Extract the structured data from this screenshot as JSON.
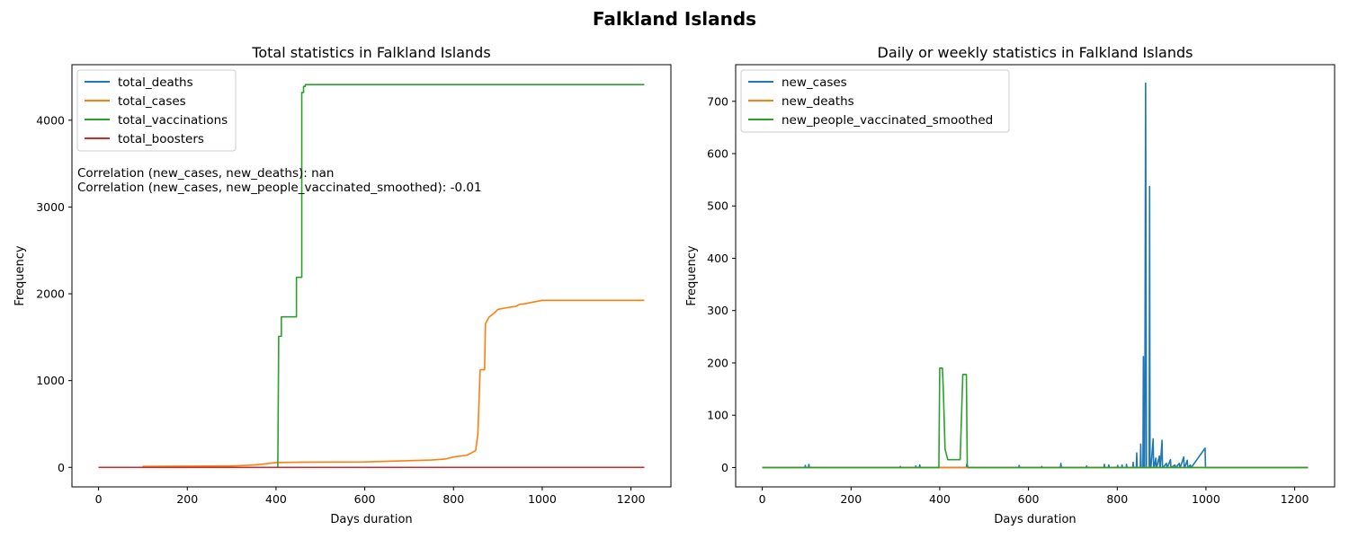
{
  "figure": {
    "suptitle": "Falkland Islands"
  },
  "chart_data": [
    {
      "type": "line",
      "title": "Total statistics in Falkland Islands",
      "xlabel": "Days duration",
      "ylabel": "Frequency",
      "xlim": [
        -60,
        1290
      ],
      "ylim": [
        -225,
        4640
      ],
      "xticks": [
        0,
        200,
        400,
        600,
        800,
        1000,
        1200
      ],
      "yticks": [
        0,
        1000,
        2000,
        3000,
        4000
      ],
      "legend_position": "upper-left",
      "annotations": [
        "Correlation (new_cases, new_deaths): nan",
        "Correlation (new_cases, new_people_vaccinated_smoothed): -0.01"
      ],
      "series": [
        {
          "name": "total_deaths",
          "color": "#1f77b4",
          "x": [
            0,
            1230
          ],
          "y": [
            0,
            0
          ]
        },
        {
          "name": "total_cases",
          "color": "#ff7f0e",
          "x": [
            0,
            100,
            100,
            300,
            350,
            360,
            400,
            460,
            600,
            700,
            750,
            780,
            800,
            830,
            840,
            850,
            855,
            860,
            862,
            870,
            872,
            880,
            890,
            900,
            920,
            940,
            950,
            960,
            1000,
            1230
          ],
          "y": [
            0,
            0,
            11,
            16,
            27,
            32,
            55,
            60,
            63,
            77,
            85,
            95,
            120,
            140,
            165,
            195,
            390,
            1120,
            1125,
            1125,
            1655,
            1730,
            1770,
            1820,
            1840,
            1855,
            1880,
            1885,
            1925,
            1925
          ]
        },
        {
          "name": "total_vaccinations",
          "color": "#2ca02c",
          "x": [
            0,
            404,
            406,
            412,
            412,
            446,
            446,
            458,
            458,
            462,
            462,
            466,
            466,
            1230
          ],
          "y": [
            0,
            0,
            1510,
            1510,
            1735,
            1735,
            2190,
            2190,
            4320,
            4320,
            4390,
            4390,
            4410,
            4410
          ]
        },
        {
          "name": "total_boosters",
          "color": "#d62728",
          "x": [
            0,
            1230
          ],
          "y": [
            0,
            0
          ]
        }
      ]
    },
    {
      "type": "line",
      "title": "Daily or weekly statistics in Falkland Islands",
      "xlabel": "Days duration",
      "ylabel": "Frequency",
      "xlim": [
        -60,
        1290
      ],
      "ylim": [
        -37,
        770
      ],
      "xticks": [
        0,
        200,
        400,
        600,
        800,
        1000,
        1200
      ],
      "yticks": [
        0,
        100,
        200,
        300,
        400,
        500,
        600,
        700
      ],
      "legend_position": "upper-left",
      "series": [
        {
          "name": "new_cases",
          "color": "#1f77b4",
          "x": [
            0,
            96,
            97,
            98,
            104,
            105,
            106,
            310,
            311,
            312,
            345,
            346,
            347,
            354,
            355,
            356,
            460,
            461,
            462,
            578,
            579,
            580,
            629,
            630,
            631,
            672,
            673,
            674,
            730,
            731,
            732,
            770,
            771,
            772,
            780,
            781,
            782,
            800,
            801,
            802,
            810,
            811,
            812,
            820,
            821,
            822,
            835,
            836,
            837,
            843,
            844,
            845,
            852,
            853,
            854,
            858,
            859,
            860,
            862,
            864,
            866,
            872,
            873,
            874,
            876,
            881,
            882,
            883,
            887,
            888,
            889,
            895,
            896,
            897,
            901,
            902,
            903,
            911,
            912,
            913,
            920,
            921,
            922,
            930,
            931,
            932,
            940,
            941,
            942,
            950,
            951,
            952,
            958,
            959,
            960,
            965,
            966,
            967,
            998,
            999,
            1000,
            1230
          ],
          "y": [
            0,
            0,
            4,
            0,
            0,
            6,
            0,
            0,
            2,
            0,
            0,
            3,
            0,
            0,
            5,
            0,
            0,
            7,
            0,
            0,
            4,
            0,
            0,
            2,
            0,
            0,
            8,
            0,
            0,
            3,
            0,
            0,
            6,
            0,
            0,
            5,
            0,
            0,
            4,
            0,
            0,
            5,
            0,
            0,
            6,
            0,
            0,
            10,
            0,
            0,
            28,
            0,
            0,
            45,
            0,
            0,
            212,
            0,
            0,
            735,
            0,
            0,
            537,
            0,
            0,
            55,
            0,
            0,
            18,
            0,
            0,
            22,
            0,
            0,
            52,
            0,
            0,
            8,
            0,
            0,
            15,
            0,
            0,
            5,
            0,
            0,
            8,
            0,
            0,
            20,
            0,
            0,
            14,
            0,
            0,
            5,
            0,
            0,
            37,
            0,
            0,
            0
          ]
        },
        {
          "name": "new_deaths",
          "color": "#ff7f0e",
          "x": [
            0,
            1230
          ],
          "y": [
            0,
            0
          ]
        },
        {
          "name": "new_people_vaccinated_smoothed",
          "color": "#2ca02c",
          "x": [
            0,
            398,
            400,
            406,
            408,
            412,
            418,
            446,
            452,
            460,
            462,
            464,
            1230
          ],
          "y": [
            0,
            0,
            190,
            190,
            150,
            35,
            15,
            15,
            178,
            178,
            5,
            0,
            0
          ]
        }
      ]
    }
  ]
}
